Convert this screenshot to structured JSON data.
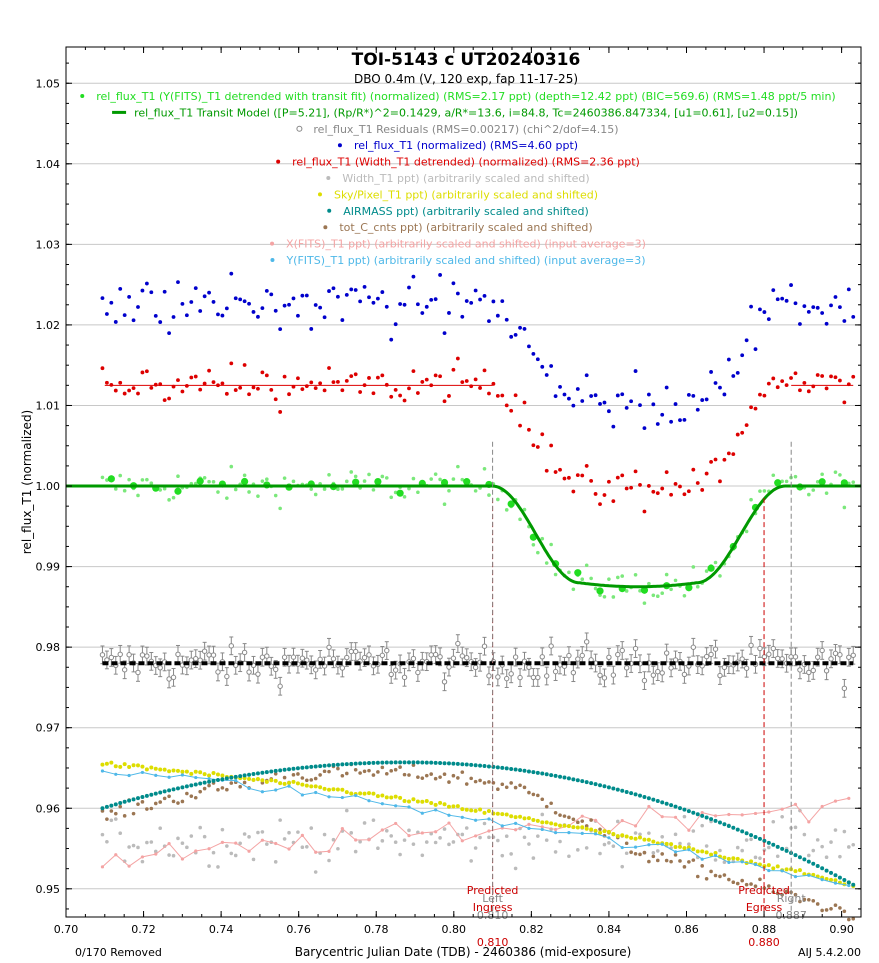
{
  "chart_data": {
    "type": "scatter",
    "title": "TOI-5143 c UT20240316",
    "subtitle": "DBO 0.4m (V, 120 exp, fap 11-17-25)",
    "xlabel": "Barycentric Julian Date (TDB) - 2460386 (mid-exposure)",
    "ylabel": "rel_flux_T1 (normalized)",
    "xlim": [
      0.7,
      0.905
    ],
    "ylim": [
      0.9465,
      1.0545
    ],
    "x_ticks": [
      "0.70",
      "0.72",
      "0.74",
      "0.76",
      "0.78",
      "0.80",
      "0.82",
      "0.84",
      "0.86",
      "0.88",
      "0.90"
    ],
    "y_ticks": [
      "0.95",
      "0.96",
      "0.97",
      "0.98",
      "0.99",
      "1.00",
      "1.01",
      "1.02",
      "1.03",
      "1.04",
      "1.05"
    ],
    "grid": "horizontal",
    "legend": [
      {
        "text": "rel_flux_T1 (Y(FITS)_T1 detrended with transit fit) (normalized) (RMS=2.17 ppt) (depth=12.42 ppt) (BIC=569.6) (RMS=1.48 ppt/5 min)",
        "color": "#22dd22",
        "marker": "dot"
      },
      {
        "text": "rel_flux_T1 Transit Model ([P=5.21], (Rp/R*)^2=0.1429, a/R*=13.6, i=84.8, Tc=2460386.847334, [u1=0.61], [u2=0.15])",
        "color": "#009900",
        "marker": "line"
      },
      {
        "text": "rel_flux_T1 Residuals (RMS=0.00217) (chi^2/dof=4.15)",
        "color": "#888888",
        "marker": "circle"
      },
      {
        "text": "rel_flux_T1 (normalized) (RMS=4.60 ppt)",
        "color": "#0000cc",
        "marker": "dot"
      },
      {
        "text": "rel_flux_T1 (Width_T1 detrended) (normalized) (RMS=2.36 ppt)",
        "color": "#dd0000",
        "marker": "dot"
      },
      {
        "text": "Width_T1 ppt) (arbitrarily scaled and shifted)",
        "color": "#bbbbbb",
        "marker": "dot"
      },
      {
        "text": "Sky/Pixel_T1 ppt) (arbitrarily scaled and shifted)",
        "color": "#dddd00",
        "marker": "dot"
      },
      {
        "text": "AIRMASS ppt) (arbitrarily scaled and shifted)",
        "color": "#008b8b",
        "marker": "dot"
      },
      {
        "text": "tot_C_cnts ppt) (arbitrarily scaled and shifted)",
        "color": "#9b7653",
        "marker": "dot"
      },
      {
        "text": "X(FITS)_T1 ppt) (arbitrarily scaled and shifted) (input average=3)",
        "color": "#f4a4a4",
        "marker": "dot"
      },
      {
        "text": "Y(FITS)_T1 ppt) (arbitrarily scaled and shifted) (input average=3)",
        "color": "#4fb8e8",
        "marker": "dot"
      }
    ],
    "model": {
      "baseline": 1.0,
      "depth": 0.0125,
      "t1": 0.8099,
      "t2": 0.8325,
      "t3": 0.8625,
      "t4": 0.8855,
      "color": "#009900"
    },
    "series": {
      "detrended": {
        "color": "#22dd22",
        "baseline": 1.0,
        "scatter": 0.0021
      },
      "binned": {
        "color": "#22dd22"
      },
      "residuals": {
        "color": "#888888",
        "baseline": 0.978,
        "scatter": 0.0022,
        "model_color": "#000000"
      },
      "raw": {
        "color": "#0000cc",
        "offset": 0.0225,
        "slope_center": 0.8,
        "scatter": 0.0025
      },
      "width_detrended": {
        "color": "#dd0000",
        "offset": 0.0125,
        "scatter": 0.0022
      },
      "width": {
        "color": "#bbbbbb",
        "level": 0.956,
        "scatter": 0.003
      },
      "sky": {
        "color": "#dddd00",
        "start": 0.9655,
        "end": 0.9505
      },
      "airmass": {
        "color": "#008b8b",
        "peak_x": 0.788,
        "peak_y": 0.9657,
        "start": 0.96,
        "end": 0.9505
      },
      "tot_cnts": {
        "color": "#9b7653",
        "start": 0.959,
        "peak_y": 0.9645,
        "end": 0.951
      },
      "x_fits": {
        "color": "#f4a4a4",
        "start": 0.953,
        "end": 0.9605
      },
      "y_fits": {
        "color": "#4fb8e8",
        "start": 0.9645,
        "end": 0.9505
      }
    },
    "baseline_fit_level": 1.0125,
    "baseline_fit_segments": [
      [
        0.71,
        0.81
      ],
      [
        0.887,
        0.903
      ]
    ],
    "markers": [
      {
        "x": 0.81,
        "label_top": "Predicted",
        "label_bottom": "Ingress",
        "value": "0.810",
        "color": "#cc0000"
      },
      {
        "x": 0.88,
        "label_top": "Predicted",
        "label_bottom": "Egress",
        "value": "0.880",
        "color": "#cc0000"
      },
      {
        "x": 0.81,
        "label_top": "",
        "label_bottom": "Left",
        "value": "0.810",
        "color": "#888888"
      },
      {
        "x": 0.887,
        "label_top": "",
        "label_bottom": "Right",
        "value": "0.887",
        "color": "#888888"
      }
    ],
    "data_range": [
      0.7094,
      0.903
    ],
    "n_points": 170
  },
  "footer": {
    "removed": "0/170 Removed",
    "version": "AIJ 5.4.2.00"
  }
}
